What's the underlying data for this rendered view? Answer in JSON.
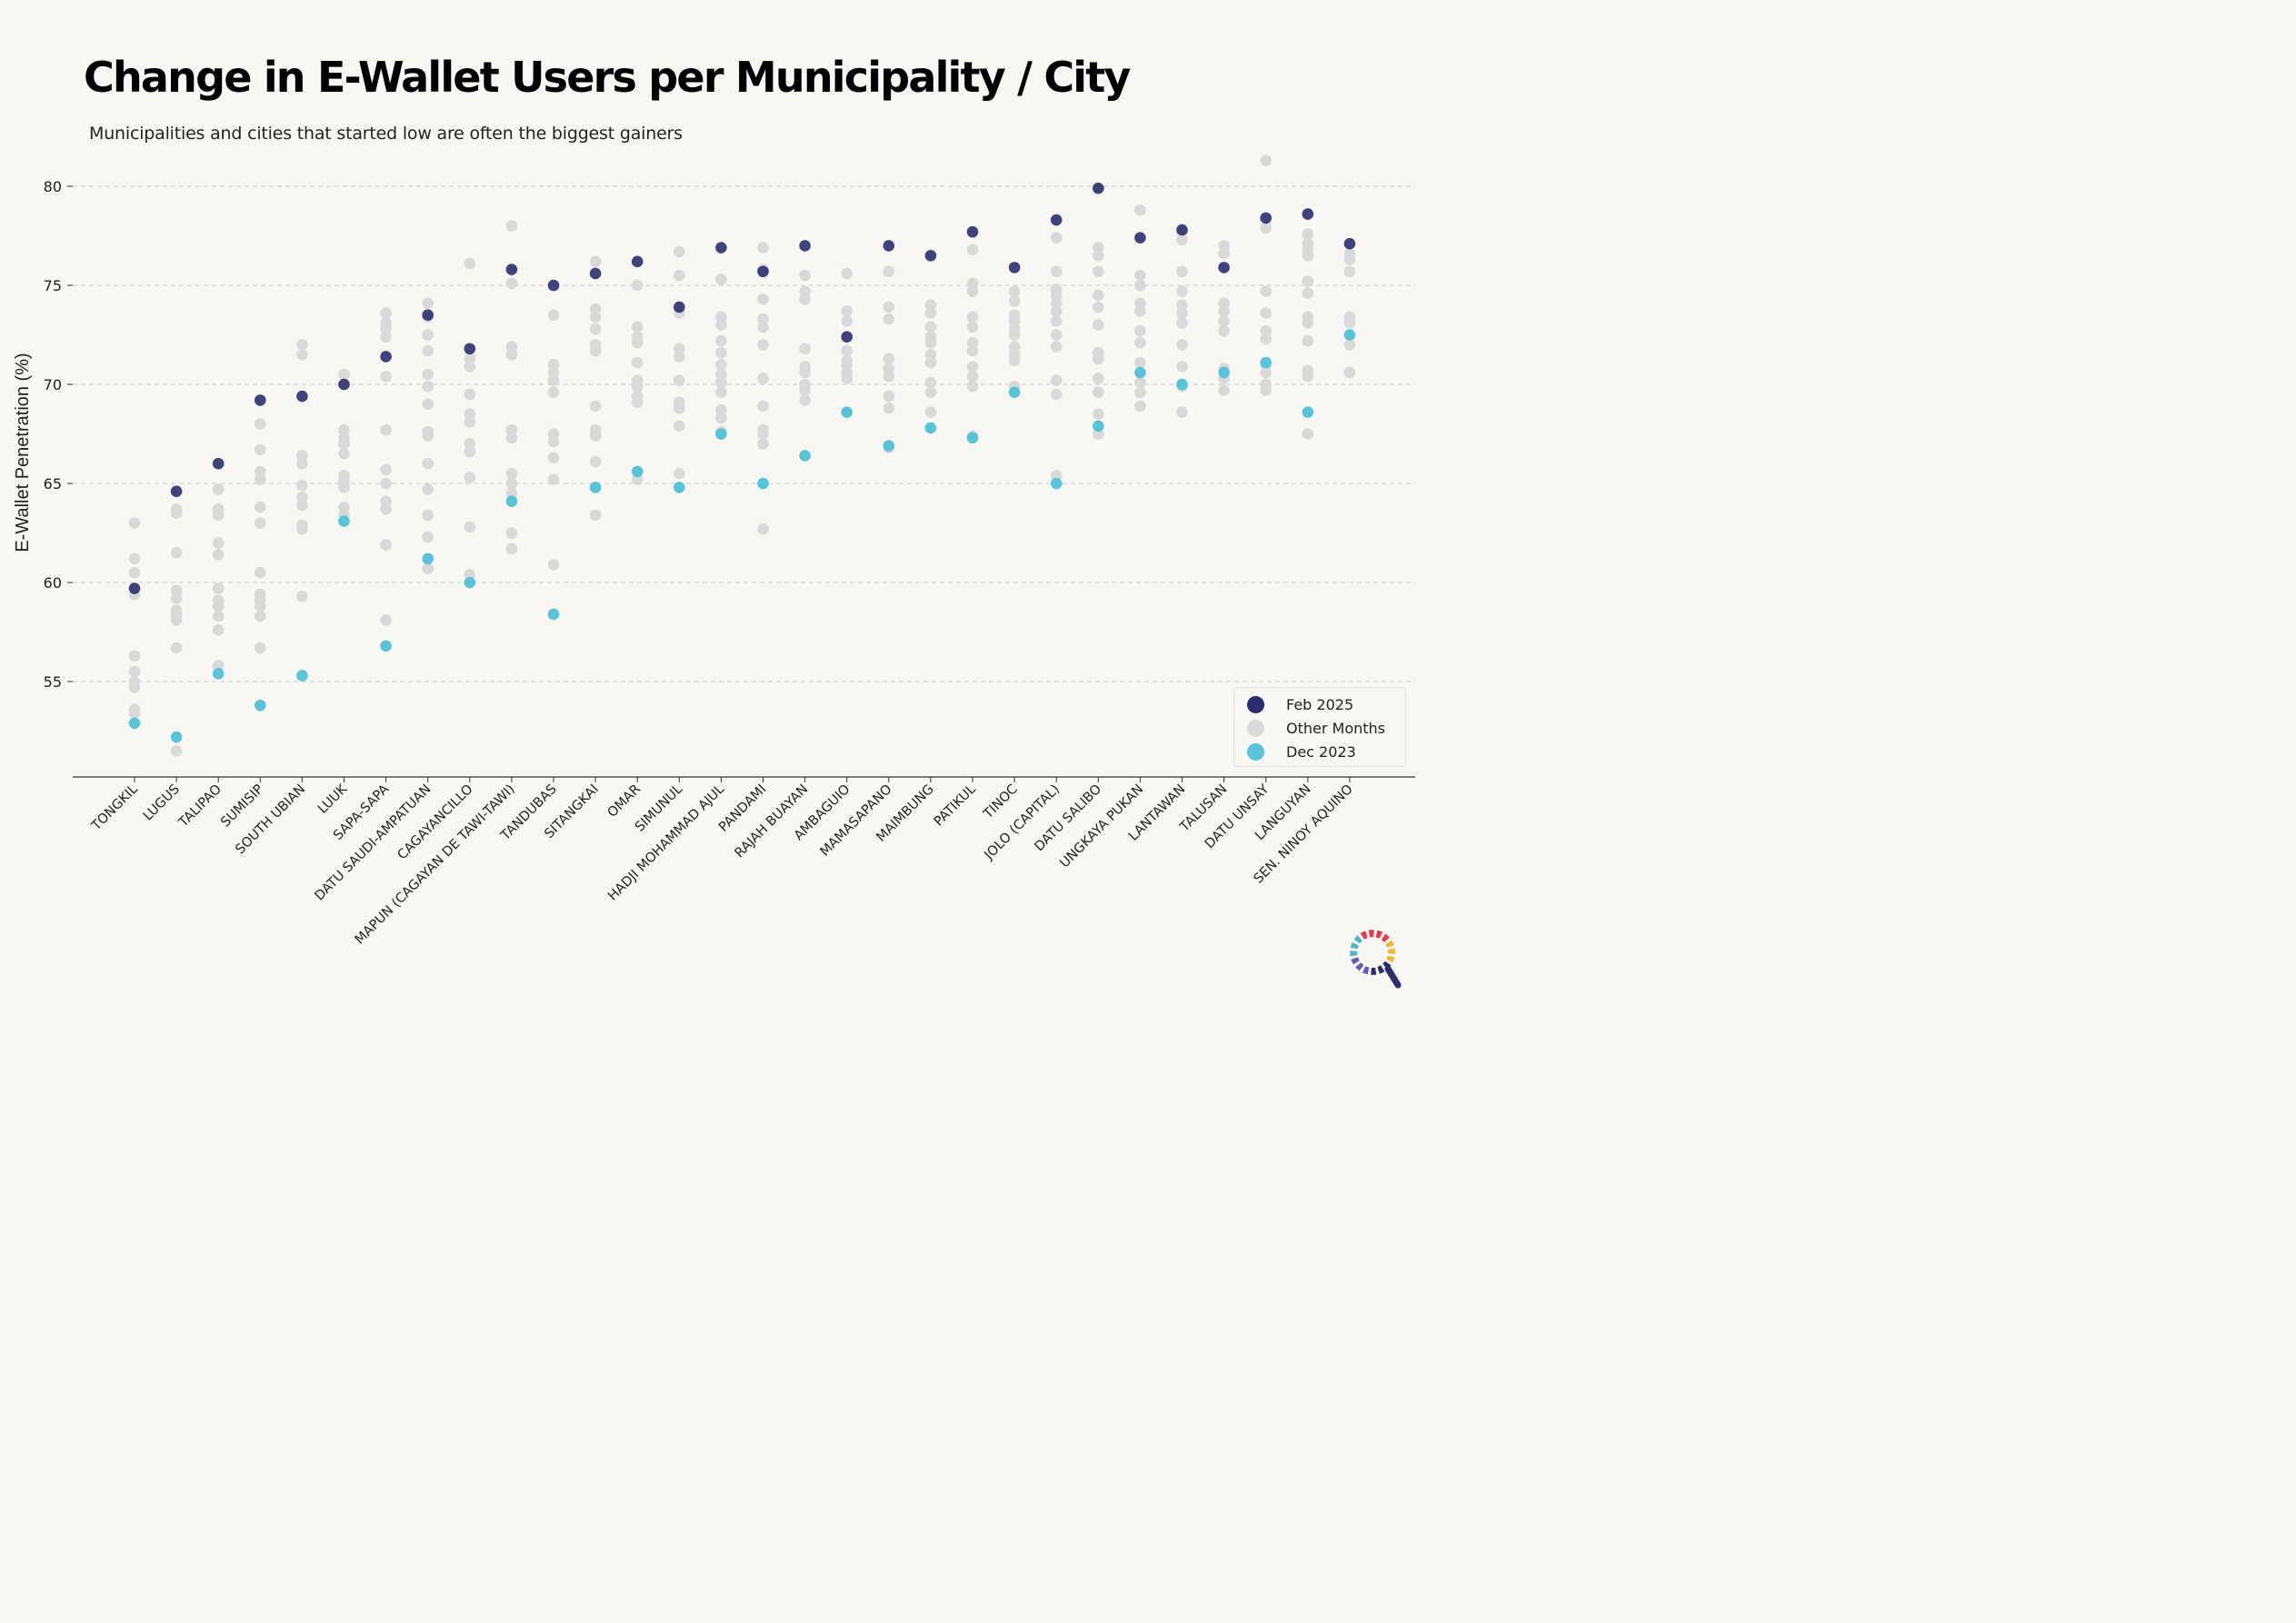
{
  "title": "Change in E-Wallet Users per Municipality / City",
  "subtitle": "Municipalities and cities that started low are often the biggest gainers",
  "colors": {
    "feb2025": "#2b2d6e",
    "other": "#d9d9d9",
    "dec2023": "#5ac3d8",
    "grid": "#cccccc",
    "axis": "#333333"
  },
  "legend": {
    "feb2025": "Feb 2025",
    "other": "Other Months",
    "dec2023": "Dec 2023"
  },
  "logo_icon": "magnifier-logo-icon",
  "chart_data": {
    "type": "scatter",
    "title": "Change in E-Wallet Users per Municipality / City",
    "subtitle": "Municipalities and cities that started low are often the biggest gainers",
    "xlabel": "",
    "ylabel": "E-Wallet Penetration (%)",
    "ylim": [
      49.6,
      82.2
    ],
    "yticks": [
      55,
      60,
      65,
      70,
      75,
      80
    ],
    "grid": "horizontal dashed",
    "legend_position": "bottom-right",
    "categories": [
      "TONGKIL",
      "LUGUS",
      "TALIPAO",
      "SUMISIP",
      "SOUTH UBIAN",
      "LUUK",
      "SAPA-SAPA",
      "DATU SAUDI-AMPATUAN",
      "CAGAYANCILLO",
      "MAPUN (CAGAYAN DE TAWI-TAWI)",
      "TANDUBAS",
      "SITANGKAI",
      "OMAR",
      "SIMUNUL",
      "HADJI MOHAMMAD AJUL",
      "PANDAMI",
      "RAJAH BUAYAN",
      "AMBAGUIO",
      "MAMASAPANO",
      "MAIMBUNG",
      "PATIKUL",
      "TINOC",
      "JOLO (CAPITAL)",
      "DATU SALIBO",
      "UNGKAYA PUKAN",
      "LANTAWAN",
      "TALUSAN",
      "DATU UNSAY",
      "LANGUYAN",
      "SEN. NINOY AQUINO"
    ],
    "series": [
      {
        "name": "Feb 2025",
        "values": [
          59.7,
          64.6,
          66.0,
          69.2,
          69.4,
          70.0,
          71.4,
          73.5,
          71.8,
          75.8,
          75.0,
          75.6,
          76.2,
          73.9,
          76.9,
          75.7,
          77.0,
          72.4,
          77.0,
          76.5,
          77.7,
          75.9,
          78.3,
          79.9,
          77.4,
          77.8,
          75.9,
          78.4,
          78.6,
          77.1
        ]
      },
      {
        "name": "Other Months",
        "values": [
          [
            63.0,
            61.2,
            60.5,
            59.4,
            56.3,
            55.5,
            55.0,
            54.7,
            53.6,
            53.4
          ],
          [
            63.7,
            63.5,
            61.5,
            59.6,
            59.2,
            58.6,
            58.4,
            58.1,
            56.7,
            51.5
          ],
          [
            64.7,
            63.7,
            63.4,
            62.0,
            61.4,
            59.7,
            59.1,
            58.8,
            58.3,
            57.6,
            55.8
          ],
          [
            68.0,
            66.7,
            65.6,
            65.2,
            63.8,
            63.0,
            60.5,
            59.4,
            59.1,
            58.8,
            58.3,
            56.7
          ],
          [
            72.0,
            71.5,
            66.4,
            66.0,
            64.9,
            64.3,
            63.9,
            62.9,
            62.7,
            59.3
          ],
          [
            70.5,
            67.7,
            67.3,
            67.0,
            66.5,
            65.4,
            65.1,
            64.8,
            63.8,
            63.4
          ],
          [
            73.6,
            73.1,
            72.8,
            72.4,
            70.4,
            67.7,
            65.7,
            65.0,
            64.1,
            63.7,
            61.9,
            58.1
          ],
          [
            74.1,
            73.4,
            72.5,
            71.7,
            70.5,
            69.9,
            69.0,
            67.6,
            67.4,
            66.0,
            64.7,
            63.4,
            62.3,
            60.7
          ],
          [
            76.1,
            71.3,
            70.9,
            69.5,
            68.5,
            68.1,
            67.0,
            66.6,
            65.3,
            62.8,
            60.4
          ],
          [
            78.0,
            75.1,
            71.9,
            71.5,
            67.7,
            67.3,
            65.5,
            65.0,
            64.5,
            62.5,
            61.7
          ],
          [
            73.5,
            71.0,
            70.6,
            70.2,
            69.6,
            67.5,
            67.1,
            66.3,
            65.2,
            60.9
          ],
          [
            76.2,
            73.8,
            73.4,
            72.8,
            72.0,
            71.7,
            68.9,
            67.7,
            67.4,
            66.1,
            63.4
          ],
          [
            75.0,
            72.9,
            72.4,
            72.1,
            71.1,
            70.2,
            69.9,
            69.4,
            69.1,
            65.2
          ],
          [
            76.7,
            75.5,
            73.6,
            71.8,
            71.4,
            70.2,
            69.1,
            68.8,
            67.9,
            65.5
          ],
          [
            75.3,
            73.4,
            73.0,
            72.2,
            71.6,
            71.0,
            70.5,
            70.1,
            69.6,
            68.7,
            68.3,
            67.6
          ],
          [
            76.9,
            75.8,
            74.3,
            73.3,
            72.9,
            72.0,
            70.3,
            68.9,
            67.7,
            67.5,
            67.0,
            62.7
          ],
          [
            75.5,
            74.7,
            74.3,
            71.8,
            70.9,
            70.6,
            70.0,
            69.7,
            69.2
          ],
          [
            75.6,
            73.7,
            73.2,
            71.7,
            71.2,
            71.0,
            70.6,
            70.3
          ],
          [
            75.7,
            73.9,
            73.3,
            71.3,
            70.8,
            70.4,
            69.4,
            68.8,
            66.8
          ],
          [
            74.0,
            73.6,
            72.9,
            72.4,
            72.1,
            71.5,
            71.1,
            70.1,
            69.6,
            68.6
          ],
          [
            76.8,
            75.1,
            74.7,
            73.4,
            72.9,
            72.1,
            71.7,
            70.9,
            70.4,
            69.9,
            67.4
          ],
          [
            74.7,
            74.2,
            73.5,
            73.2,
            72.8,
            72.5,
            71.9,
            71.5,
            71.2,
            69.9
          ],
          [
            77.4,
            75.7,
            74.8,
            74.5,
            74.1,
            73.7,
            73.2,
            72.5,
            71.9,
            70.2,
            69.5,
            65.4
          ],
          [
            76.9,
            76.5,
            75.7,
            74.5,
            73.9,
            73.0,
            71.6,
            71.3,
            70.3,
            69.6,
            68.5,
            67.5
          ],
          [
            78.8,
            75.5,
            75.0,
            74.1,
            73.7,
            72.7,
            72.1,
            71.1,
            70.1,
            69.6,
            68.9
          ],
          [
            77.7,
            77.3,
            75.7,
            74.7,
            74.0,
            73.6,
            73.1,
            72.0,
            70.9,
            69.9,
            68.6
          ],
          [
            77.0,
            76.6,
            74.1,
            73.7,
            73.2,
            72.7,
            70.8,
            70.3,
            69.7
          ],
          [
            81.3,
            77.9,
            74.7,
            73.6,
            72.7,
            72.3,
            71.0,
            70.6,
            70.0,
            69.7
          ],
          [
            77.6,
            77.1,
            76.8,
            76.5,
            75.2,
            74.6,
            73.4,
            73.1,
            72.2,
            70.7,
            70.4,
            67.5
          ],
          [
            76.6,
            76.3,
            75.7,
            73.4,
            73.1,
            72.0,
            70.6
          ]
        ]
      },
      {
        "name": "Dec 2023",
        "values": [
          52.9,
          52.2,
          55.4,
          53.8,
          55.3,
          63.1,
          56.8,
          61.2,
          60.0,
          64.1,
          58.4,
          64.8,
          65.6,
          64.8,
          67.5,
          65.0,
          66.4,
          68.6,
          66.9,
          67.8,
          67.3,
          69.6,
          65.0,
          67.9,
          70.6,
          70.0,
          70.6,
          71.1,
          68.6,
          72.5
        ]
      }
    ]
  }
}
